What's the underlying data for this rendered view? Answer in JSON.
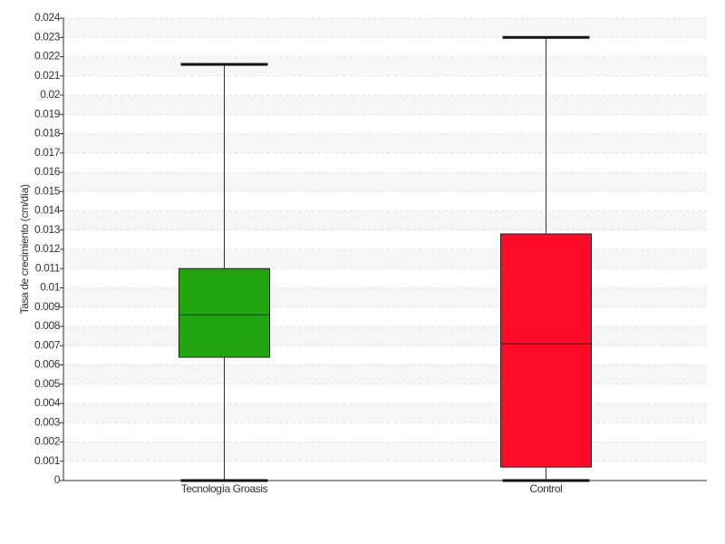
{
  "chart_data": {
    "type": "box",
    "y_label": "Tasa de crecimiento (cm/día)",
    "categories": [
      "Tecnología Groasis",
      "Control"
    ],
    "boxes": [
      {
        "color": "#22a511",
        "min": 0,
        "q1": 0.0064,
        "median": 0.0086,
        "q3": 0.011,
        "max": 0.0216
      },
      {
        "color": "#ff0a28",
        "min": 0,
        "q1": 0.0007,
        "median": 0.0071,
        "q3": 0.0128,
        "max": 0.023
      }
    ],
    "ylim": [
      0,
      0.024
    ],
    "yticks": [
      0,
      0.001,
      0.002,
      0.003,
      0.004,
      0.005,
      0.006,
      0.007,
      0.008,
      0.009,
      0.01,
      0.011,
      0.012,
      0.013,
      0.014,
      0.015,
      0.016,
      0.017,
      0.018,
      0.019,
      0.02,
      0.021,
      0.022,
      0.023,
      0.024
    ],
    "grid": true
  }
}
